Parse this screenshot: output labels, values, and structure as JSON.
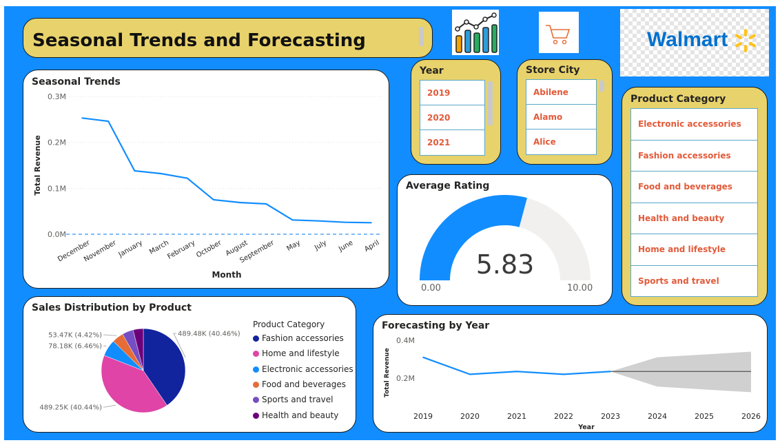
{
  "title": "Seasonal Trends and Forecasting",
  "icons": [
    "bar-chart-icon",
    "shopping-cart-icon"
  ],
  "logo": {
    "text": "Walmart",
    "color": "#0071CE",
    "spark_color": "#FFC220"
  },
  "colors": {
    "background": "#118DFF",
    "tile": "#E8D26B",
    "line": "#118DFF",
    "slicer_text": "#E25B3A"
  },
  "slicer_year": {
    "title": "Year",
    "items": [
      "2019",
      "2020",
      "2021"
    ]
  },
  "slicer_city": {
    "title": "Store City",
    "items": [
      "Abilene",
      "Alamo",
      "Alice"
    ]
  },
  "slicer_category": {
    "title": "Product Category",
    "items": [
      "Electronic accessories",
      "Fashion accessories",
      "Food and beverages",
      "Health and beauty",
      "Home and lifestyle",
      "Sports and travel"
    ]
  },
  "gauge": {
    "title": "Average Rating",
    "value": 5.83,
    "value_label": "5.83",
    "min_label": "0.00",
    "max_label": "10.00",
    "min": 0,
    "max": 10
  },
  "chart_data": [
    {
      "type": "line",
      "title": "Seasonal Trends",
      "xlabel": "Month",
      "ylabel": "Total Revenue",
      "categories": [
        "December",
        "November",
        "January",
        "March",
        "February",
        "October",
        "August",
        "September",
        "May",
        "July",
        "June",
        "April"
      ],
      "values": [
        253000,
        246000,
        138000,
        132000,
        122000,
        75000,
        69000,
        66000,
        31000,
        29000,
        26000,
        25000
      ],
      "yticks": [
        "0.0M",
        "0.1M",
        "0.2M",
        "0.3M"
      ],
      "ylim": [
        0,
        300000
      ],
      "grid": true
    },
    {
      "type": "pie",
      "title": "Sales Distribution by Product",
      "legend_title": "Product Category",
      "legend_position": "right",
      "slices": [
        {
          "name": "Fashion accessories",
          "value": 489.48,
          "pct": 40.46,
          "label": "489.48K (40.46%)",
          "color": "#12239E"
        },
        {
          "name": "Home and lifestyle",
          "value": 489.25,
          "pct": 40.44,
          "label": "489.25K (40.44%)",
          "color": "#E044A7"
        },
        {
          "name": "Electronic accessories",
          "value": 78.18,
          "pct": 6.46,
          "label": "78.18K (6.46%)",
          "color": "#118DFF"
        },
        {
          "name": "Food and beverages",
          "value": 53.47,
          "pct": 4.42,
          "label": "53.47K (4.42%)",
          "color": "#E66C37"
        },
        {
          "name": "Sports and travel",
          "value": 52.0,
          "pct": 4.3,
          "label": "",
          "color": "#744EC2"
        },
        {
          "name": "Health and beauty",
          "value": 47.5,
          "pct": 3.92,
          "label": "",
          "color": "#6B007B"
        }
      ]
    },
    {
      "type": "line",
      "title": "Forecasting by Year",
      "xlabel": "Year",
      "ylabel": "Total Revenue",
      "x": [
        "2019",
        "2020",
        "2021",
        "2022",
        "2023",
        "2024",
        "2025",
        "2026"
      ],
      "values": [
        310000,
        220000,
        235000,
        220000,
        235000,
        null,
        null,
        null
      ],
      "forecast": {
        "x": [
          "2023",
          "2024",
          "2025",
          "2026"
        ],
        "value": [
          235000,
          235000,
          235000,
          235000
        ],
        "upper": [
          235000,
          310000,
          325000,
          340000
        ],
        "lower": [
          235000,
          155000,
          140000,
          125000
        ]
      },
      "yticks": [
        "0.2M",
        "0.4M"
      ],
      "ylim": [
        50000,
        400000
      ]
    }
  ]
}
